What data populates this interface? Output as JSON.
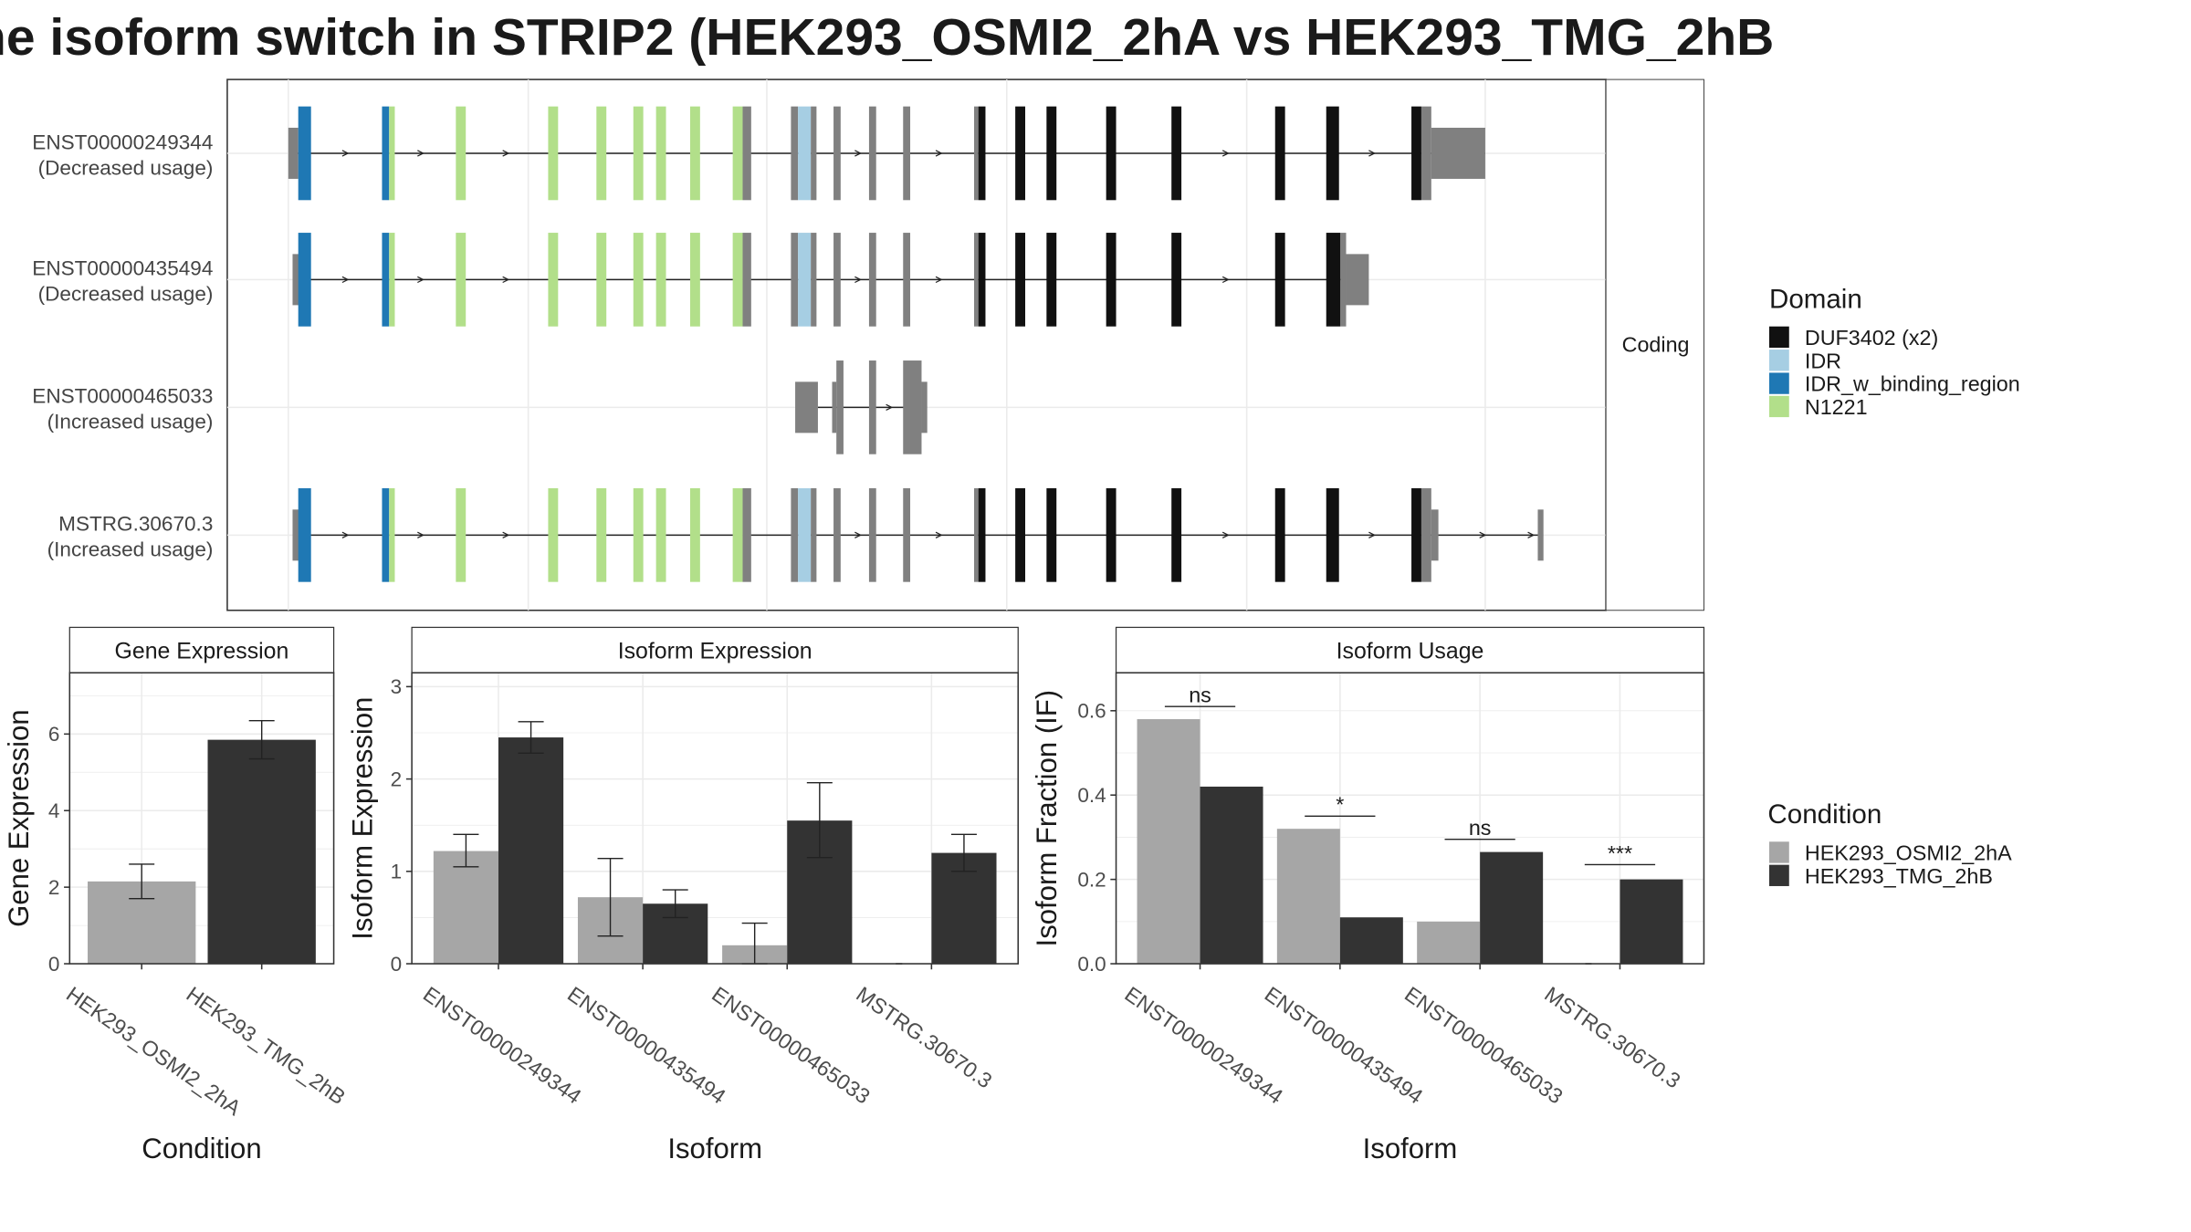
{
  "title": "he isoform switch in STRIP2 (HEK293_OSMI2_2hA vs HEK293_TMG_2hB",
  "colors": {
    "utr": "#808080",
    "DUF3402 (x2)": "#111111",
    "IDR": "#a6cee3",
    "IDR_w_binding_region": "#1f78b4",
    "N1221": "#b2df8a",
    "cond_a": "#a6a6a6",
    "cond_b": "#333333"
  },
  "structure": {
    "strip_label": "Coding",
    "legend_title": "Domain",
    "legend_items": [
      "DUF3402 (x2)",
      "IDR",
      "IDR_w_binding_region",
      "N1221"
    ],
    "isoforms": [
      {
        "id": "ENST00000249344",
        "usage": "(Decreased usage)"
      },
      {
        "id": "ENST00000435494",
        "usage": "(Decreased usage)"
      },
      {
        "id": "ENST00000465033",
        "usage": "(Increased usage)"
      },
      {
        "id": "MSTRG.30670.3",
        "usage": "(Increased usage)"
      }
    ]
  },
  "condition_legend": {
    "title": "Condition",
    "items": [
      "HEK293_OSMI2_2hA",
      "HEK293_TMG_2hB"
    ]
  },
  "chart_data": [
    {
      "type": "bar",
      "title": "Gene Expression",
      "xlabel": "Condition",
      "ylabel": "Gene Expression",
      "categories": [
        "HEK293_OSMI2_2hA",
        "HEK293_TMG_2hB"
      ],
      "values": [
        2.15,
        5.85
      ],
      "errors": [
        [
          1.7,
          2.6
        ],
        [
          5.35,
          6.35
        ]
      ],
      "yticks": [
        0,
        2,
        4,
        6
      ],
      "ylim": [
        0,
        7.6
      ]
    },
    {
      "type": "bar",
      "title": "Isoform Expression",
      "xlabel": "Isoform",
      "ylabel": "Isoform Expression",
      "categories": [
        "ENST00000249344",
        "ENST00000435494",
        "ENST00000465033",
        "MSTRG.30670.3"
      ],
      "series": [
        {
          "name": "HEK293_OSMI2_2hA",
          "values": [
            1.22,
            0.72,
            0.2,
            0.0
          ],
          "errors": [
            [
              1.05,
              1.4
            ],
            [
              0.3,
              1.14
            ],
            [
              0.0,
              0.44
            ],
            [
              0.0,
              0.0
            ]
          ]
        },
        {
          "name": "HEK293_TMG_2hB",
          "values": [
            2.45,
            0.65,
            1.55,
            1.2
          ],
          "errors": [
            [
              2.28,
              2.62
            ],
            [
              0.5,
              0.8
            ],
            [
              1.15,
              1.96
            ],
            [
              1.0,
              1.4
            ]
          ]
        }
      ],
      "yticks": [
        0,
        1,
        2,
        3
      ],
      "ylim": [
        0,
        3.15
      ]
    },
    {
      "type": "bar",
      "title": "Isoform Usage",
      "xlabel": "Isoform",
      "ylabel": "Isoform Fraction (IF)",
      "categories": [
        "ENST00000249344",
        "ENST00000435494",
        "ENST00000465033",
        "MSTRG.30670.3"
      ],
      "series": [
        {
          "name": "HEK293_OSMI2_2hA",
          "values": [
            0.58,
            0.32,
            0.1,
            0.0
          ]
        },
        {
          "name": "HEK293_TMG_2hB",
          "values": [
            0.42,
            0.11,
            0.265,
            0.2
          ]
        }
      ],
      "significance": [
        "ns",
        "*",
        "ns",
        "***"
      ],
      "sig_levels": [
        0.61,
        0.35,
        0.295,
        0.235
      ],
      "yticks": [
        0.0,
        0.2,
        0.4,
        0.6
      ],
      "ytick_labels": [
        "0.0",
        "0.2",
        "0.4",
        "0.6"
      ],
      "ylim": [
        0,
        0.69
      ]
    }
  ]
}
